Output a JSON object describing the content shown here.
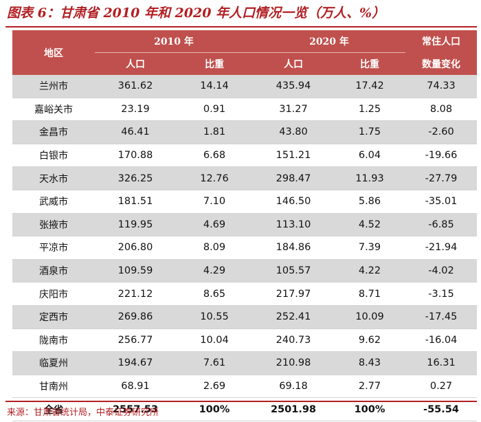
{
  "title": "图表 6：甘肃省 2010 年和 2020 年人口情况一览（万人、%）",
  "header": {
    "region": "地区",
    "year_2010": "2010 年",
    "year_2020": "2020 年",
    "change_line1": "常住人口",
    "change_line2": "数量变化",
    "population": "人口",
    "share": "比重"
  },
  "rows": [
    {
      "region": "兰州市",
      "pop2010": "361.62",
      "share2010": "14.14",
      "pop2020": "435.94",
      "share2020": "17.42",
      "change": "74.33"
    },
    {
      "region": "嘉峪关市",
      "pop2010": "23.19",
      "share2010": "0.91",
      "pop2020": "31.27",
      "share2020": "1.25",
      "change": "8.08"
    },
    {
      "region": "金昌市",
      "pop2010": "46.41",
      "share2010": "1.81",
      "pop2020": "43.80",
      "share2020": "1.75",
      "change": "-2.60"
    },
    {
      "region": "白银市",
      "pop2010": "170.88",
      "share2010": "6.68",
      "pop2020": "151.21",
      "share2020": "6.04",
      "change": "-19.66"
    },
    {
      "region": "天水市",
      "pop2010": "326.25",
      "share2010": "12.76",
      "pop2020": "298.47",
      "share2020": "11.93",
      "change": "-27.79"
    },
    {
      "region": "武威市",
      "pop2010": "181.51",
      "share2010": "7.10",
      "pop2020": "146.50",
      "share2020": "5.86",
      "change": "-35.01"
    },
    {
      "region": "张掖市",
      "pop2010": "119.95",
      "share2010": "4.69",
      "pop2020": "113.10",
      "share2020": "4.52",
      "change": "-6.85"
    },
    {
      "region": "平凉市",
      "pop2010": "206.80",
      "share2010": "8.09",
      "pop2020": "184.86",
      "share2020": "7.39",
      "change": "-21.94"
    },
    {
      "region": "酒泉市",
      "pop2010": "109.59",
      "share2010": "4.29",
      "pop2020": "105.57",
      "share2020": "4.22",
      "change": "-4.02"
    },
    {
      "region": "庆阳市",
      "pop2010": "221.12",
      "share2010": "8.65",
      "pop2020": "217.97",
      "share2020": "8.71",
      "change": "-3.15"
    },
    {
      "region": "定西市",
      "pop2010": "269.86",
      "share2010": "10.55",
      "pop2020": "252.41",
      "share2020": "10.09",
      "change": "-17.45"
    },
    {
      "region": "陇南市",
      "pop2010": "256.77",
      "share2010": "10.04",
      "pop2020": "240.73",
      "share2020": "9.62",
      "change": "-16.04"
    },
    {
      "region": "临夏州",
      "pop2010": "194.67",
      "share2010": "7.61",
      "pop2020": "210.98",
      "share2020": "8.43",
      "change": "16.31"
    },
    {
      "region": "甘南州",
      "pop2010": "68.91",
      "share2010": "2.69",
      "pop2020": "69.18",
      "share2020": "2.77",
      "change": "0.27"
    }
  ],
  "total": {
    "region": "全省",
    "pop2010": "2557.53",
    "share2010": "100%",
    "pop2020": "2501.98",
    "share2020": "100%",
    "change": "-55.54"
  },
  "source": "来源：甘肃省统计局，中泰证券研究所",
  "colors": {
    "header_bg": "#c0504d",
    "accent": "#b21f23",
    "stripe": "#d9d9d9"
  }
}
